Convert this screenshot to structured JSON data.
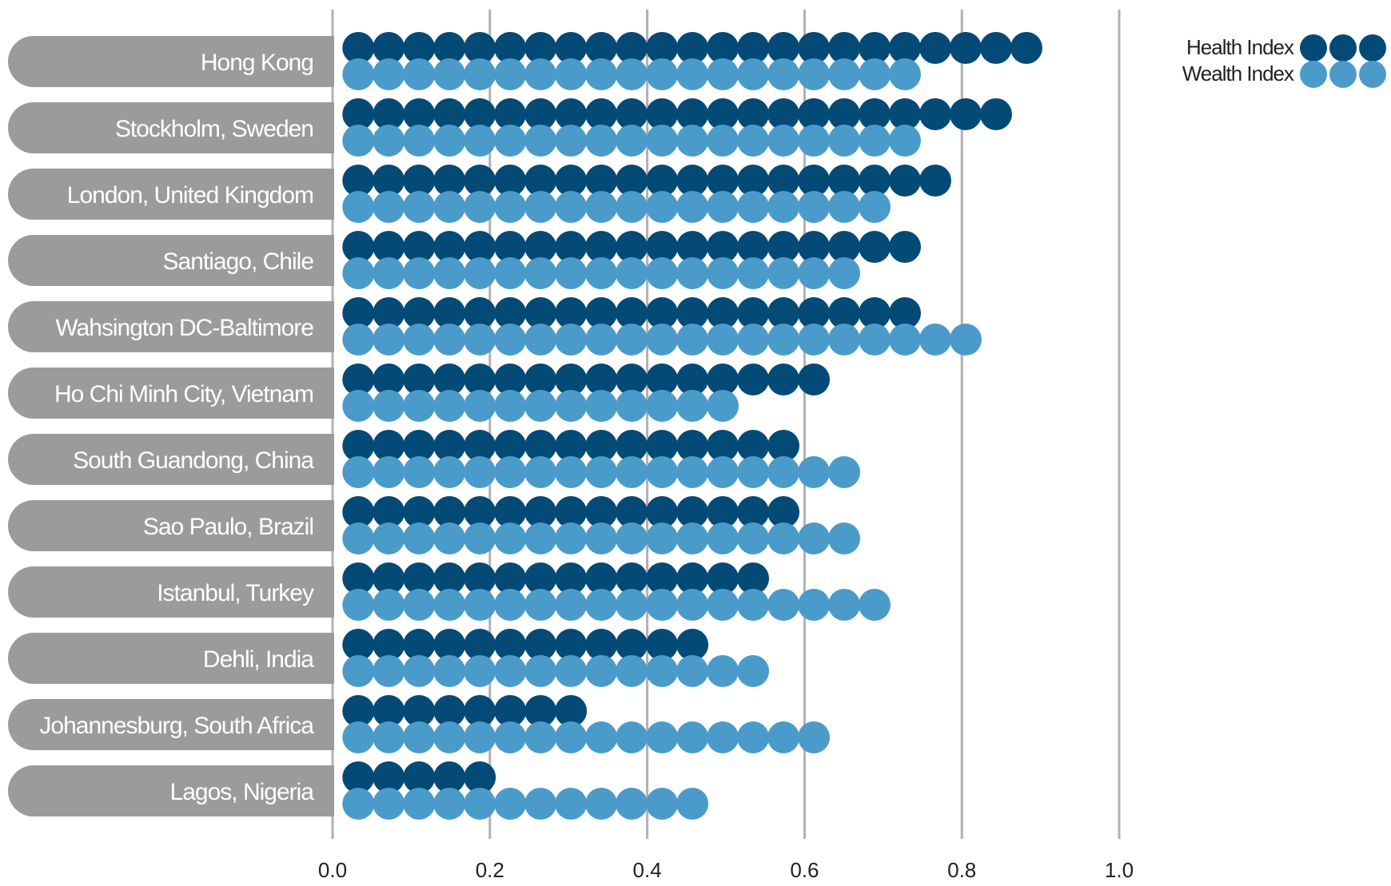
{
  "chart_data": {
    "type": "dot-bar",
    "categories": [
      "Hong Kong",
      "Stockholm, Sweden",
      "London, United Kingdom",
      "Santiago, Chile",
      "Wahsington DC-Baltimore",
      "Ho Chi Minh City, Vietnam",
      "South Guandong, China",
      "Sao Paulo, Brazil",
      "Istanbul, Turkey",
      "Dehli, India",
      "Johannesburg, South Africa",
      "Lagos, Nigeria"
    ],
    "series": [
      {
        "name": "Health Index",
        "color": "#034a76",
        "values": [
          0.9,
          0.86,
          0.79,
          0.75,
          0.75,
          0.63,
          0.59,
          0.59,
          0.55,
          0.47,
          0.31,
          0.19
        ]
      },
      {
        "name": "Wealth Index",
        "color": "#4a9bca",
        "values": [
          0.75,
          0.75,
          0.71,
          0.67,
          0.83,
          0.51,
          0.67,
          0.67,
          0.71,
          0.55,
          0.63,
          0.47
        ]
      }
    ],
    "dot_unit": 0.04,
    "x_ticks": [
      "0.0",
      "0.2",
      "0.4",
      "0.6",
      "0.8",
      "1.0"
    ],
    "x_tick_values": [
      0.0,
      0.2,
      0.4,
      0.6,
      0.8,
      1.0
    ],
    "xlim": [
      0,
      1.02
    ],
    "grid": "vertical",
    "legend": "top-right",
    "label_pill_color": "#9b9b9d",
    "grid_color": "#b0b0b0"
  }
}
